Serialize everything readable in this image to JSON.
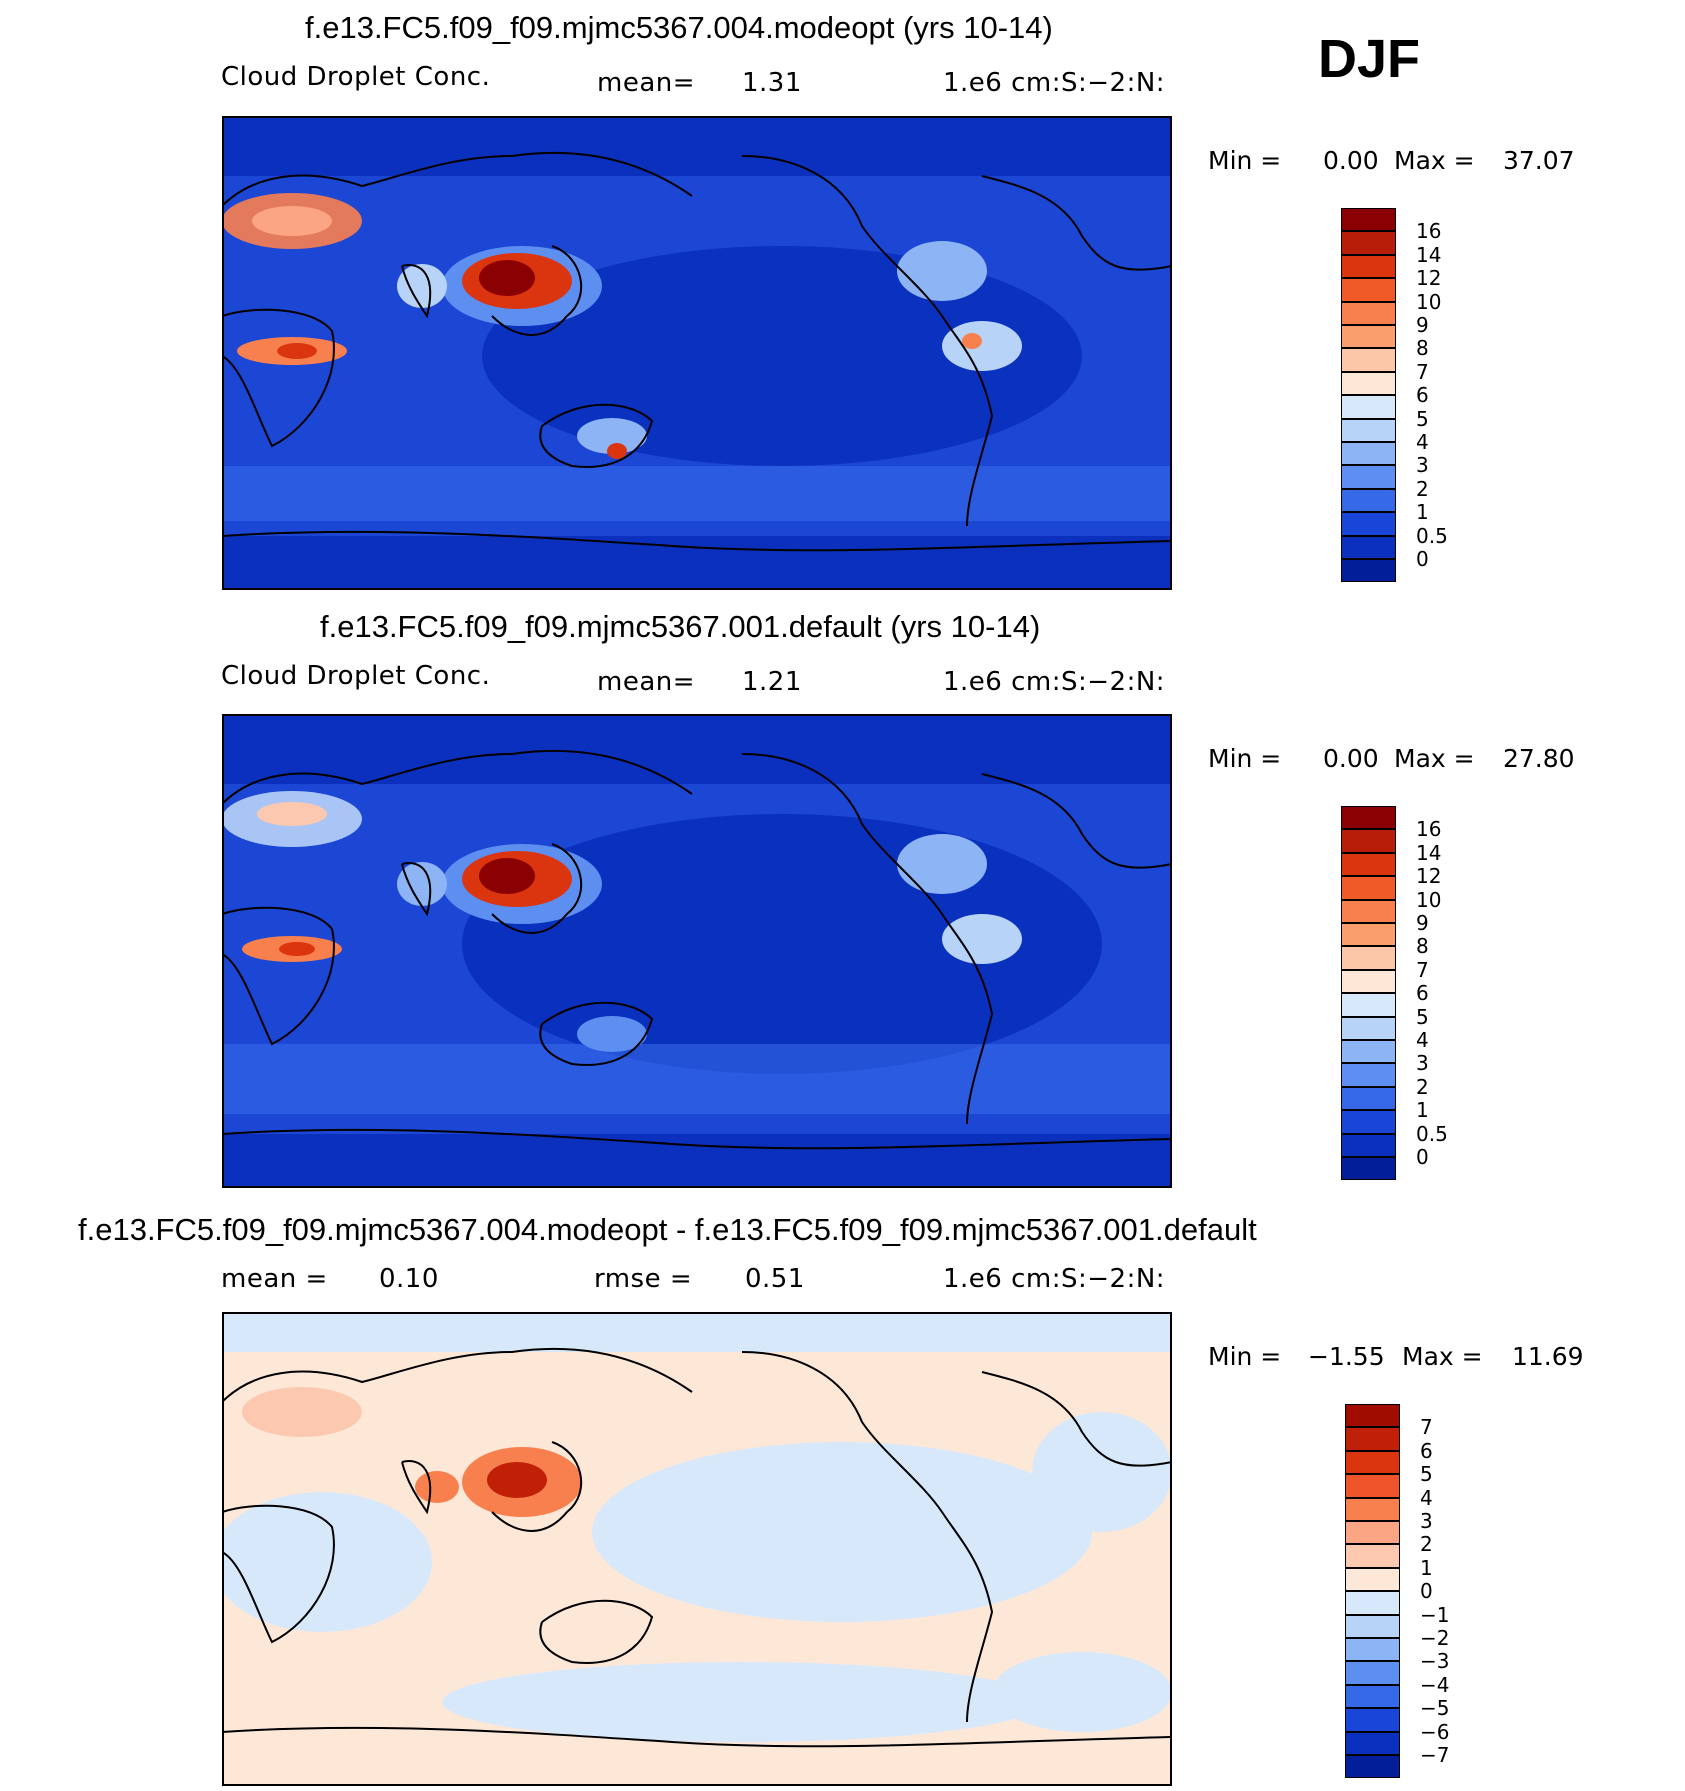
{
  "season": "DJF",
  "panels": [
    {
      "title": "f.e13.FC5.f09_f09.mjmc5367.004.modeopt (yrs 10-14)",
      "left_label": "Cloud Droplet Conc.",
      "mid_label": "mean=",
      "mid_value": "1.31",
      "units": "1.e6 cm:S:−2:N:",
      "min_label": "Min =",
      "min_value": "0.00",
      "max_label": "Max =",
      "max_value": "37.07",
      "colorbar": {
        "labels": [
          "16",
          "14",
          "12",
          "10",
          "9",
          "8",
          "7",
          "6",
          "5",
          "4",
          "3",
          "2",
          "1",
          "0.5",
          "0"
        ],
        "colors": [
          "#8b0000",
          "#b81d0a",
          "#db3510",
          "#f05a28",
          "#f8804e",
          "#fb9e6d",
          "#fcc6a8",
          "#fde8d8",
          "#d8e8fb",
          "#b8d3f8",
          "#8db4f5",
          "#5d8ff0",
          "#3569e8",
          "#1945d8",
          "#0a30bd",
          "#021f99"
        ]
      }
    },
    {
      "title": "f.e13.FC5.f09_f09.mjmc5367.001.default (yrs 10-14)",
      "left_label": "Cloud Droplet Conc.",
      "mid_label": "mean=",
      "mid_value": "1.21",
      "units": "1.e6 cm:S:−2:N:",
      "min_label": "Min =",
      "min_value": "0.00",
      "max_label": "Max =",
      "max_value": "27.80",
      "colorbar": {
        "labels": [
          "16",
          "14",
          "12",
          "10",
          "9",
          "8",
          "7",
          "6",
          "5",
          "4",
          "3",
          "2",
          "1",
          "0.5",
          "0"
        ],
        "colors": [
          "#8b0000",
          "#b81d0a",
          "#db3510",
          "#f05a28",
          "#f8804e",
          "#fb9e6d",
          "#fcc6a8",
          "#fde8d8",
          "#d8e8fb",
          "#b8d3f8",
          "#8db4f5",
          "#5d8ff0",
          "#3569e8",
          "#1945d8",
          "#0a30bd",
          "#021f99"
        ]
      }
    },
    {
      "title": "f.e13.FC5.f09_f09.mjmc5367.004.modeopt - f.e13.FC5.f09_f09.mjmc5367.001.default",
      "left_label": "mean =",
      "left_value": "0.10",
      "mid_label": "rmse =",
      "mid_value": "0.51",
      "units": "1.e6 cm:S:−2:N:",
      "min_label": "Min =",
      "min_value": "−1.55",
      "max_label": "Max =",
      "max_value": "11.69",
      "colorbar": {
        "labels": [
          "7",
          "6",
          "5",
          "4",
          "3",
          "2",
          "1",
          "0",
          "−1",
          "−2",
          "−3",
          "−4",
          "−5",
          "−6",
          "−7"
        ],
        "colors": [
          "#a00c00",
          "#c02008",
          "#db3510",
          "#f0542a",
          "#f8804e",
          "#fba585",
          "#fcc8b0",
          "#fde8d8",
          "#d8e8fb",
          "#b8d3f8",
          "#8db4f5",
          "#5d8ff0",
          "#3569e8",
          "#1945d8",
          "#0a30bd",
          "#021f99"
        ]
      }
    }
  ]
}
